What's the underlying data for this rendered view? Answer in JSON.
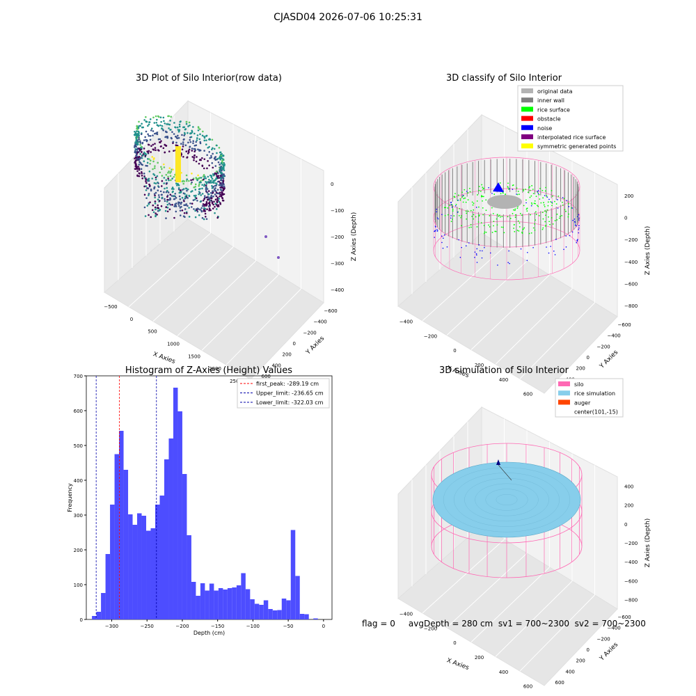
{
  "figure": {
    "suptitle": "CJASD04 2026-07-06 10:25:31",
    "footer": "flag = 0     avgDepth = 280 cm  sv1 = 700~2300  sv2 = 700~2300"
  },
  "colors": {
    "hist_bar": "#4d4dff",
    "first_peak_line": "#ff0000",
    "limit_line": "#0000aa",
    "silo": "#ff69b4",
    "rice_simulation": "#87ceeb",
    "auger": "#ff4500",
    "original_data": "#b3b3b3",
    "inner_wall": "#808080",
    "rice_surface": "#00ff00",
    "obstacle": "#ff0000",
    "noise": "#0000ff",
    "interpolated_rice_surface": "#800080",
    "symmetric_generated_points": "#ffff00"
  },
  "chart_data": [
    {
      "type": "scatter",
      "projection": "3d",
      "title": "3D Plot of Silo Interior(row data)",
      "xlabel": "X Axies",
      "ylabel": "Y Axies",
      "zlabel": "Z Axies (Depth)",
      "xticks": [
        "−500",
        "0",
        "500",
        "1000",
        "1500",
        "2000",
        "2500"
      ],
      "yticks": [
        "−600",
        "−400",
        "−200",
        "0",
        "200",
        "400",
        "600"
      ],
      "zticks": [
        "−400",
        "−300",
        "−200",
        "−100",
        "0"
      ],
      "xlim": [
        -600,
        2500
      ],
      "ylim": [
        -650,
        650
      ],
      "zlim": [
        -420,
        0
      ],
      "colormap": "viridis"
    },
    {
      "type": "scatter",
      "projection": "3d",
      "title": "3D classify of Silo Interior",
      "xlabel": "X Axies",
      "ylabel": "Y Axies",
      "zlabel": "Z Axies (Depth)",
      "xticks": [
        "−400",
        "−200",
        "0",
        "200",
        "400",
        "600"
      ],
      "yticks": [
        "−600",
        "−400",
        "−200",
        "0",
        "200",
        "400",
        "600"
      ],
      "zticks": [
        "−800",
        "−600",
        "−400",
        "−200",
        "0",
        "200"
      ],
      "xlim": [
        -500,
        700
      ],
      "ylim": [
        -650,
        650
      ],
      "zlim": [
        -900,
        300
      ],
      "legend_position": "top-right",
      "legend": [
        "original data",
        "inner wall",
        "rice surface",
        "obstacle",
        "noise",
        "interpolated rice surface",
        "symmetric generated points"
      ]
    },
    {
      "type": "bar",
      "title": "Histogram of Z-Axies (Height) Values",
      "xlabel": "Depth (cm)",
      "ylabel": "Frequency",
      "xlim": [
        -336,
        12
      ],
      "ylim": [
        0,
        700
      ],
      "xticks": [
        -300,
        -250,
        -200,
        -150,
        -100,
        -50,
        0
      ],
      "xtick_labels": [
        "−300",
        "−250",
        "−200",
        "−150",
        "−100",
        "−50",
        "0"
      ],
      "yticks": [
        0,
        100,
        200,
        300,
        400,
        500,
        600,
        700
      ],
      "bin_start": -328,
      "bin_width": 6.4,
      "values": [
        10,
        22,
        76,
        188,
        330,
        475,
        542,
        430,
        302,
        272,
        305,
        298,
        255,
        262,
        330,
        356,
        460,
        520,
        666,
        598,
        418,
        242,
        108,
        68,
        104,
        83,
        103,
        83,
        90,
        86,
        90,
        92,
        98,
        133,
        87,
        58,
        45,
        42,
        55,
        30,
        26,
        27,
        60,
        55,
        257,
        125,
        16,
        15,
        0,
        3
      ],
      "vlines": [
        {
          "label": "first_peak: -289.19 cm",
          "x": -289.19,
          "color": "red"
        },
        {
          "label": "Upper_limit: -236.65 cm",
          "x": -236.65,
          "color": "blue"
        },
        {
          "label": "Lower_limit: -322.03 cm",
          "x": -322.03,
          "color": "blue"
        }
      ],
      "legend_position": "top-right"
    },
    {
      "type": "scatter",
      "projection": "3d",
      "title": "3D simulation of Silo Interior",
      "xlabel": "X Axies",
      "ylabel": "Y Axies",
      "zlabel": "Z Axies (Depth)",
      "xticks": [
        "−400",
        "−200",
        "0",
        "200",
        "400",
        "600"
      ],
      "yticks": [
        "−600",
        "−400",
        "−200",
        "0",
        "200",
        "400",
        "600"
      ],
      "zticks": [
        "−800",
        "−600",
        "−400",
        "−200",
        "0",
        "200",
        "400"
      ],
      "xlim": [
        -500,
        700
      ],
      "ylim": [
        -650,
        650
      ],
      "zlim": [
        -900,
        450
      ],
      "legend_position": "top-right",
      "legend": [
        "silo",
        "rice simulation",
        "auger",
        "center(101,-15)"
      ]
    }
  ]
}
